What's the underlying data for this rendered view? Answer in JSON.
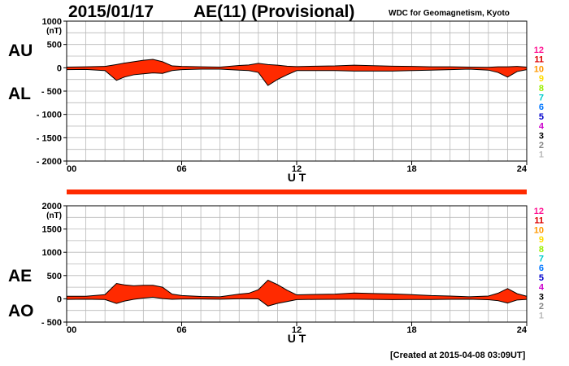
{
  "header": {
    "date": "2015/01/17",
    "index": "AE(11) (Provisional)",
    "credit": "WDC for Geomagnetism, Kyoto"
  },
  "footer": {
    "created": "[Created at 2015-04-08 03:09UT]"
  },
  "colors": {
    "fill": "#ff2a00",
    "grid": "#b8b8b8"
  },
  "station_legend": [
    {
      "label": "12",
      "color": "#ff1493"
    },
    {
      "label": "11",
      "color": "#dd0000"
    },
    {
      "label": "10",
      "color": "#ff9900"
    },
    {
      "label": "9",
      "color": "#ffdd00"
    },
    {
      "label": "8",
      "color": "#99ee00"
    },
    {
      "label": "7",
      "color": "#00cccc"
    },
    {
      "label": "6",
      "color": "#0077ff"
    },
    {
      "label": "5",
      "color": "#0000cc"
    },
    {
      "label": "4",
      "color": "#cc00cc"
    },
    {
      "label": "3",
      "color": "#000000"
    },
    {
      "label": "2",
      "color": "#888888"
    },
    {
      "label": "1",
      "color": "#bbbbbb"
    }
  ],
  "chart_data": [
    {
      "type": "area",
      "side_labels": [
        "AU",
        "AL"
      ],
      "unit_label": "(nT)",
      "xlabel": "U T",
      "xlim": [
        0,
        24
      ],
      "x_ticks": [
        "00",
        "06",
        "12",
        "18",
        "24"
      ],
      "ylim": [
        -2000,
        1000
      ],
      "y_ticks": [
        {
          "v": 1000,
          "t": "1000"
        },
        {
          "v": 500,
          "t": "500"
        },
        {
          "v": 0,
          "t": "0"
        },
        {
          "v": -500,
          "t": "- 500"
        },
        {
          "v": -1000,
          "t": "- 1000"
        },
        {
          "v": -1500,
          "t": "- 1500"
        },
        {
          "v": -2000,
          "t": "- 2000"
        }
      ],
      "grid": true,
      "series": [
        {
          "name": "AU",
          "x": [
            0,
            1,
            2,
            2.6,
            3,
            3.5,
            4,
            4.5,
            5,
            5.5,
            6,
            7,
            8,
            9,
            9.5,
            10,
            10.5,
            11,
            11.5,
            12,
            13,
            14,
            15,
            16,
            17,
            18,
            19,
            20,
            21,
            22,
            22.5,
            23,
            23.5,
            24
          ],
          "values": [
            15,
            20,
            30,
            70,
            100,
            130,
            160,
            180,
            130,
            40,
            30,
            20,
            15,
            50,
            60,
            95,
            70,
            55,
            35,
            25,
            35,
            40,
            55,
            45,
            35,
            30,
            20,
            20,
            15,
            10,
            20,
            20,
            30,
            15
          ]
        },
        {
          "name": "AL",
          "x": [
            0,
            1,
            2,
            2.6,
            3,
            3.5,
            4,
            4.5,
            5,
            5.5,
            6,
            7,
            8,
            9,
            9.5,
            10,
            10.5,
            11,
            11.5,
            12,
            13,
            14,
            15,
            16,
            17,
            18,
            19,
            20,
            21,
            22,
            22.5,
            23,
            23.5,
            24
          ],
          "values": [
            -40,
            -35,
            -60,
            -270,
            -200,
            -150,
            -130,
            -110,
            -120,
            -60,
            -40,
            -30,
            -30,
            -50,
            -60,
            -100,
            -380,
            -250,
            -150,
            -60,
            -60,
            -60,
            -70,
            -70,
            -70,
            -60,
            -50,
            -40,
            -30,
            -50,
            -100,
            -200,
            -80,
            -40
          ]
        }
      ]
    },
    {
      "type": "area",
      "side_labels": [
        "AE",
        "AO"
      ],
      "unit_label": "(nT)",
      "xlabel": "U T",
      "xlim": [
        0,
        24
      ],
      "x_ticks": [
        "00",
        "06",
        "12",
        "18",
        "24"
      ],
      "ylim": [
        -500,
        2000
      ],
      "y_ticks": [
        {
          "v": 2000,
          "t": "2000"
        },
        {
          "v": 1500,
          "t": "1500"
        },
        {
          "v": 1000,
          "t": "1000"
        },
        {
          "v": 500,
          "t": "500"
        },
        {
          "v": 0,
          "t": "0"
        },
        {
          "v": -500,
          "t": "- 500"
        }
      ],
      "grid": true,
      "series": [
        {
          "name": "AE",
          "x": [
            0,
            1,
            2,
            2.6,
            3,
            3.5,
            4,
            4.5,
            5,
            5.5,
            6,
            7,
            8,
            9,
            9.5,
            10,
            10.5,
            11,
            11.5,
            12,
            13,
            14,
            15,
            16,
            17,
            18,
            19,
            20,
            21,
            22,
            22.5,
            23,
            23.5,
            24
          ],
          "values": [
            55,
            55,
            90,
            330,
            300,
            280,
            290,
            290,
            250,
            100,
            70,
            50,
            45,
            100,
            120,
            195,
            400,
            305,
            185,
            85,
            95,
            100,
            125,
            115,
            105,
            90,
            70,
            60,
            45,
            60,
            120,
            220,
            110,
            55
          ]
        },
        {
          "name": "AO",
          "x": [
            0,
            1,
            2,
            2.6,
            3,
            3.5,
            4,
            4.5,
            5,
            5.5,
            6,
            7,
            8,
            9,
            9.5,
            10,
            10.5,
            11,
            11.5,
            12,
            13,
            14,
            15,
            16,
            17,
            18,
            19,
            20,
            21,
            22,
            22.5,
            23,
            23.5,
            24
          ],
          "values": [
            -12,
            -8,
            -15,
            -100,
            -50,
            -10,
            15,
            35,
            5,
            -10,
            -5,
            -5,
            -8,
            0,
            0,
            -2,
            -155,
            -98,
            -58,
            -18,
            -12,
            -10,
            -8,
            -12,
            -18,
            -15,
            -15,
            -10,
            -8,
            -20,
            -40,
            -90,
            -25,
            -12
          ]
        }
      ]
    }
  ]
}
